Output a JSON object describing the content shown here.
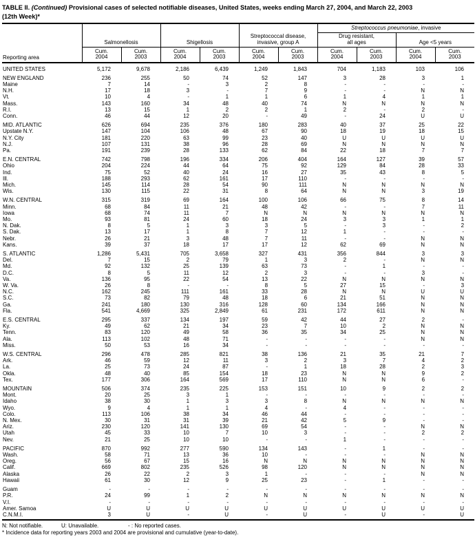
{
  "title": {
    "part1": "TABLE II.",
    "part2_italic": "(Continued)",
    "part3": "Provisional cases of selected notifiable diseases, United States, weeks ending March 27, 2004, and March 22, 2003",
    "line2": "(12th Week)*"
  },
  "header": {
    "reporting_area": "Reporting area",
    "salmonellosis": "Salmonellosis",
    "shigellosis": "Shigellosis",
    "strep_a_line1": "Streptococcal disease,",
    "strep_a_line2": "invasive, group A",
    "pneumo_italic": "Streptococcus pneumoniae",
    "pneumo_rest": ", invasive",
    "drug_resistant_line1": "Drug resistant,",
    "drug_resistant_line2": "all ages",
    "age_under5": "Age <5 years",
    "cum_label": "Cum.",
    "years": [
      "2004",
      "2003",
      "2004",
      "2003",
      "2004",
      "2003",
      "2004",
      "2003",
      "2004",
      "2003"
    ]
  },
  "sections": [
    {
      "rows": [
        [
          "UNITED STATES",
          "5,172",
          "9,678",
          "2,186",
          "6,439",
          "1,249",
          "1,843",
          "704",
          "1,183",
          "103",
          "106"
        ]
      ]
    },
    {
      "rows": [
        [
          "NEW ENGLAND",
          "236",
          "255",
          "50",
          "74",
          "52",
          "147",
          "3",
          "28",
          "3",
          "1"
        ],
        [
          "Maine",
          "7",
          "14",
          "-",
          "3",
          "2",
          "8",
          "-",
          "-",
          "-",
          "-"
        ],
        [
          "N.H.",
          "17",
          "18",
          "3",
          "-",
          "7",
          "9",
          "-",
          "-",
          "N",
          "N"
        ],
        [
          "Vt.",
          "10",
          "4",
          "-",
          "1",
          "1",
          "6",
          "1",
          "4",
          "1",
          "1"
        ],
        [
          "Mass.",
          "143",
          "160",
          "34",
          "48",
          "40",
          "74",
          "N",
          "N",
          "N",
          "N"
        ],
        [
          "R.I.",
          "13",
          "15",
          "1",
          "2",
          "2",
          "1",
          "2",
          "-",
          "2",
          "-"
        ],
        [
          "Conn.",
          "46",
          "44",
          "12",
          "20",
          "-",
          "49",
          "-",
          "24",
          "U",
          "U"
        ]
      ]
    },
    {
      "rows": [
        [
          "MID. ATLANTIC",
          "626",
          "694",
          "235",
          "376",
          "180",
          "283",
          "40",
          "37",
          "25",
          "22"
        ],
        [
          "Upstate N.Y.",
          "147",
          "104",
          "106",
          "48",
          "67",
          "90",
          "18",
          "19",
          "18",
          "15"
        ],
        [
          "N.Y. City",
          "181",
          "220",
          "63",
          "99",
          "23",
          "40",
          "U",
          "U",
          "U",
          "U"
        ],
        [
          "N.J.",
          "107",
          "131",
          "38",
          "96",
          "28",
          "69",
          "N",
          "N",
          "N",
          "N"
        ],
        [
          "Pa.",
          "191",
          "239",
          "28",
          "133",
          "62",
          "84",
          "22",
          "18",
          "7",
          "7"
        ]
      ]
    },
    {
      "rows": [
        [
          "E.N. CENTRAL",
          "742",
          "798",
          "196",
          "334",
          "206",
          "404",
          "164",
          "127",
          "39",
          "57"
        ],
        [
          "Ohio",
          "204",
          "224",
          "44",
          "64",
          "75",
          "92",
          "129",
          "84",
          "28",
          "33"
        ],
        [
          "Ind.",
          "75",
          "52",
          "40",
          "24",
          "16",
          "27",
          "35",
          "43",
          "8",
          "5"
        ],
        [
          "Ill.",
          "188",
          "293",
          "62",
          "161",
          "17",
          "110",
          "-",
          "-",
          "-",
          "-"
        ],
        [
          "Mich.",
          "145",
          "114",
          "28",
          "54",
          "90",
          "111",
          "N",
          "N",
          "N",
          "N"
        ],
        [
          "Wis.",
          "130",
          "115",
          "22",
          "31",
          "8",
          "64",
          "N",
          "N",
          "3",
          "19"
        ]
      ]
    },
    {
      "rows": [
        [
          "W.N. CENTRAL",
          "315",
          "319",
          "69",
          "164",
          "100",
          "106",
          "66",
          "75",
          "8",
          "14"
        ],
        [
          "Minn.",
          "68",
          "84",
          "11",
          "21",
          "48",
          "42",
          "-",
          "-",
          "7",
          "11"
        ],
        [
          "Iowa",
          "68",
          "74",
          "11",
          "7",
          "N",
          "N",
          "N",
          "N",
          "N",
          "N"
        ],
        [
          "Mo.",
          "93",
          "81",
          "24",
          "60",
          "18",
          "24",
          "3",
          "3",
          "1",
          "1"
        ],
        [
          "N. Dak.",
          "8",
          "5",
          "1",
          "3",
          "3",
          "5",
          "-",
          "3",
          "-",
          "2"
        ],
        [
          "S. Dak.",
          "13",
          "17",
          "1",
          "8",
          "7",
          "12",
          "1",
          "-",
          "-",
          "-"
        ],
        [
          "Nebr.",
          "26",
          "21",
          "3",
          "48",
          "7",
          "11",
          "-",
          "-",
          "N",
          "N"
        ],
        [
          "Kans.",
          "39",
          "37",
          "18",
          "17",
          "17",
          "12",
          "62",
          "69",
          "N",
          "N"
        ]
      ]
    },
    {
      "rows": [
        [
          "S. ATLANTIC",
          "1,286",
          "5,431",
          "705",
          "3,658",
          "327",
          "431",
          "356",
          "844",
          "3",
          "3"
        ],
        [
          "Del.",
          "7",
          "15",
          "2",
          "79",
          "1",
          "3",
          "2",
          "-",
          "N",
          "N"
        ],
        [
          "Md.",
          "92",
          "132",
          "25",
          "139",
          "63",
          "73",
          "-",
          "1",
          "-",
          "-"
        ],
        [
          "D.C.",
          "8",
          "5",
          "11",
          "12",
          "2",
          "3",
          "-",
          "-",
          "3",
          "-"
        ],
        [
          "Va.",
          "136",
          "95",
          "22",
          "54",
          "13",
          "22",
          "N",
          "N",
          "N",
          "N"
        ],
        [
          "W. Va.",
          "26",
          "8",
          "-",
          "-",
          "8",
          "5",
          "27",
          "15",
          "-",
          "3"
        ],
        [
          "N.C.",
          "162",
          "245",
          "111",
          "161",
          "33",
          "28",
          "N",
          "N",
          "U",
          "U"
        ],
        [
          "S.C.",
          "73",
          "82",
          "79",
          "48",
          "18",
          "6",
          "21",
          "51",
          "N",
          "N"
        ],
        [
          "Ga.",
          "241",
          "180",
          "130",
          "316",
          "128",
          "60",
          "134",
          "166",
          "N",
          "N"
        ],
        [
          "Fla.",
          "541",
          "4,669",
          "325",
          "2,849",
          "61",
          "231",
          "172",
          "611",
          "N",
          "N"
        ]
      ]
    },
    {
      "rows": [
        [
          "E.S. CENTRAL",
          "295",
          "337",
          "134",
          "197",
          "59",
          "42",
          "44",
          "27",
          "2",
          "-"
        ],
        [
          "Ky.",
          "49",
          "62",
          "21",
          "34",
          "23",
          "7",
          "10",
          "2",
          "N",
          "N"
        ],
        [
          "Tenn.",
          "83",
          "120",
          "49",
          "58",
          "36",
          "35",
          "34",
          "25",
          "N",
          "N"
        ],
        [
          "Ala.",
          "113",
          "102",
          "48",
          "71",
          "-",
          "-",
          "-",
          "-",
          "N",
          "N"
        ],
        [
          "Miss.",
          "50",
          "53",
          "16",
          "34",
          "-",
          "-",
          "-",
          "-",
          "-",
          "-"
        ]
      ]
    },
    {
      "rows": [
        [
          "W.S. CENTRAL",
          "296",
          "478",
          "285",
          "821",
          "38",
          "136",
          "21",
          "35",
          "21",
          "7"
        ],
        [
          "Ark.",
          "46",
          "59",
          "12",
          "11",
          "3",
          "2",
          "3",
          "7",
          "4",
          "2"
        ],
        [
          "La.",
          "25",
          "73",
          "24",
          "87",
          "-",
          "1",
          "18",
          "28",
          "2",
          "3"
        ],
        [
          "Okla.",
          "48",
          "40",
          "85",
          "154",
          "18",
          "23",
          "N",
          "N",
          "9",
          "2"
        ],
        [
          "Tex.",
          "177",
          "306",
          "164",
          "569",
          "17",
          "110",
          "N",
          "N",
          "6",
          "-"
        ]
      ]
    },
    {
      "rows": [
        [
          "MOUNTAIN",
          "506",
          "374",
          "235",
          "225",
          "153",
          "151",
          "10",
          "9",
          "2",
          "2"
        ],
        [
          "Mont.",
          "20",
          "25",
          "3",
          "1",
          "-",
          "-",
          "-",
          "-",
          "-",
          "-"
        ],
        [
          "Idaho",
          "38",
          "30",
          "1",
          "3",
          "3",
          "8",
          "N",
          "N",
          "N",
          "N"
        ],
        [
          "Wyo.",
          "9",
          "4",
          "1",
          "1",
          "4",
          "-",
          "4",
          "-",
          "-",
          "-"
        ],
        [
          "Colo.",
          "113",
          "106",
          "38",
          "34",
          "46",
          "44",
          "-",
          "-",
          "-",
          "-"
        ],
        [
          "N. Mex.",
          "30",
          "31",
          "31",
          "39",
          "21",
          "42",
          "5",
          "9",
          "-",
          "-"
        ],
        [
          "Ariz.",
          "230",
          "120",
          "141",
          "130",
          "69",
          "54",
          "-",
          "-",
          "N",
          "N"
        ],
        [
          "Utah",
          "45",
          "33",
          "10",
          "7",
          "10",
          "3",
          "-",
          "-",
          "2",
          "2"
        ],
        [
          "Nev.",
          "21",
          "25",
          "10",
          "10",
          "-",
          "-",
          "1",
          "-",
          "-",
          "-"
        ]
      ]
    },
    {
      "rows": [
        [
          "PACIFIC",
          "870",
          "992",
          "277",
          "590",
          "134",
          "143",
          "-",
          "1",
          "-",
          "-"
        ],
        [
          "Wash.",
          "58",
          "71",
          "13",
          "36",
          "10",
          "-",
          "-",
          "-",
          "N",
          "N"
        ],
        [
          "Oreg.",
          "56",
          "67",
          "15",
          "16",
          "N",
          "N",
          "N",
          "N",
          "N",
          "N"
        ],
        [
          "Calif.",
          "669",
          "802",
          "235",
          "526",
          "98",
          "120",
          "N",
          "N",
          "N",
          "N"
        ],
        [
          "Alaska",
          "26",
          "22",
          "2",
          "3",
          "1",
          "-",
          "-",
          "-",
          "N",
          "N"
        ],
        [
          "Hawaii",
          "61",
          "30",
          "12",
          "9",
          "25",
          "23",
          "-",
          "1",
          "-",
          "-"
        ]
      ]
    },
    {
      "rows": [
        [
          "Guam",
          "-",
          "-",
          "-",
          "-",
          "-",
          "-",
          "-",
          "-",
          "-",
          "-"
        ],
        [
          "P.R.",
          "24",
          "99",
          "1",
          "2",
          "N",
          "N",
          "N",
          "N",
          "N",
          "N"
        ],
        [
          "V.I.",
          "-",
          "-",
          "-",
          "-",
          "-",
          "-",
          "-",
          "-",
          "-",
          "-"
        ],
        [
          "Amer. Samoa",
          "U",
          "U",
          "U",
          "U",
          "U",
          "U",
          "U",
          "U",
          "U",
          "U"
        ],
        [
          "C.N.M.I.",
          "3",
          "U",
          "-",
          "U",
          "-",
          "U",
          "-",
          "U",
          "-",
          "U"
        ]
      ]
    }
  ],
  "footnotes": {
    "n": "N: Not notifiable.",
    "u": "U: Unavailable.",
    "dash": "- : No reported cases.",
    "star": "* Incidence data for reporting years 2003 and 2004 are provisional and cumulative (year-to-date)."
  }
}
